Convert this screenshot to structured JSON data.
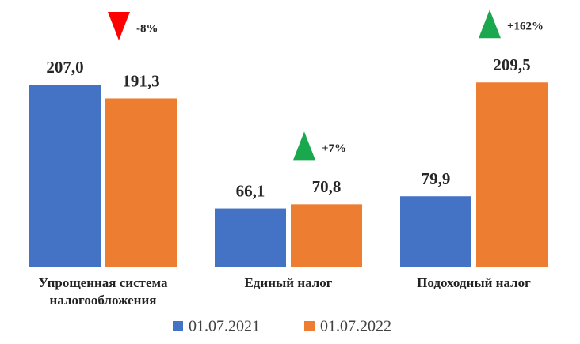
{
  "chart_data": {
    "type": "bar",
    "categories": [
      "Упрощенная система налогообложения",
      "Единый налог",
      "Подоходный налог"
    ],
    "series": [
      {
        "name": "01.07.2021",
        "color": "#4472c4",
        "values": [
          207.0,
          66.1,
          79.9
        ],
        "value_labels": [
          "207,0",
          "66,1",
          "79,9"
        ]
      },
      {
        "name": "01.07.2022",
        "color": "#ed7d31",
        "values": [
          191.3,
          70.8,
          209.5
        ],
        "value_labels": [
          "191,3",
          "70,8",
          "209,5"
        ]
      }
    ],
    "annotations": [
      {
        "text": "-8%",
        "direction": "down",
        "color": "#ff0000"
      },
      {
        "text": "+7%",
        "direction": "up",
        "color": "#1aa84f"
      },
      {
        "text": "+162%",
        "direction": "up",
        "color": "#1aa84f"
      }
    ],
    "legend": "bottom"
  }
}
